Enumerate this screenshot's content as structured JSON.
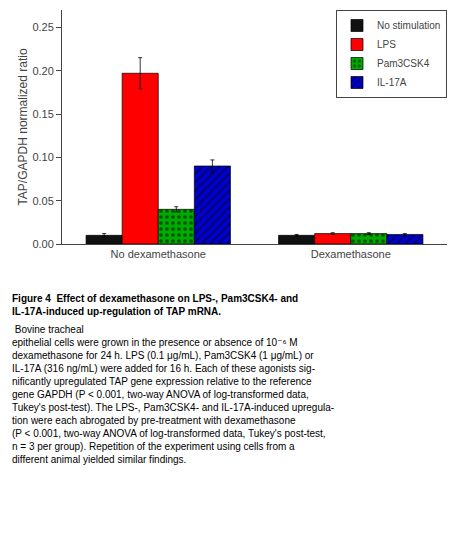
{
  "chart_data": {
    "type": "bar",
    "categories": [
      "No dexamethasone",
      "Dexamethasone"
    ],
    "series": [
      {
        "name": "No stimulation",
        "color": "#111111",
        "values": [
          0.01,
          0.01
        ],
        "errors": [
          0.002,
          0.001
        ]
      },
      {
        "name": "LPS",
        "color": "#ff0000",
        "values": [
          0.197,
          0.012
        ],
        "errors": [
          0.018,
          0.001
        ]
      },
      {
        "name": "Pam3CSK4",
        "color": "#00aa00",
        "values": [
          0.04,
          0.012
        ],
        "errors": [
          0.003,
          0.001
        ]
      },
      {
        "name": "IL-17A",
        "color": "#0000cc",
        "values": [
          0.09,
          0.011
        ],
        "errors": [
          0.007,
          0.001
        ]
      }
    ],
    "ylabel": "TAP/GAPDH normalized ratio",
    "ylim": [
      0,
      0.27
    ],
    "yticks": [
      {
        "value": 0.0,
        "label": "0.00"
      },
      0.05,
      {
        "value": 0.1,
        "label": "0.10"
      },
      0.15,
      {
        "value": 0.2,
        "label": "0.20"
      },
      0.25
    ],
    "grid": false,
    "legend": "upper right",
    "annotations": [
      "Figure 4  Effect of dexamethasone on LPS-, Pam3CSK4- and\nIL-17A-induced up-regulation of TAP mRNA.",
      " Bovine tracheal\nepithelial cells were grown in the presence or absence of 10⁻⁶ M\ndexamethasone for 24 h. LPS (0.1 μg/mL), Pam3CSK4 (1 μg/mL) or\nIL-17A (316 ng/mL) were added for 16 h. Each of these agonists sig-\nnificantly upregulated TAP gene expression relative to the reference\ngene GAPDH (P < 0.001, two-way ANOVA of log-transformed data,\nTukey's post-test). The LPS-, Pam3CSK4- and IL-17A-induced upregula-\ntion were each abrogated by pre-treatment with dexamethasone\n(P < 0.001, two-way ANOVA of log-transformed data, Tukey's post-test,\nn = 3 per group). Repetition of the experiment using cells from a\ndifferent animal yielded similar findings."
    ]
  }
}
